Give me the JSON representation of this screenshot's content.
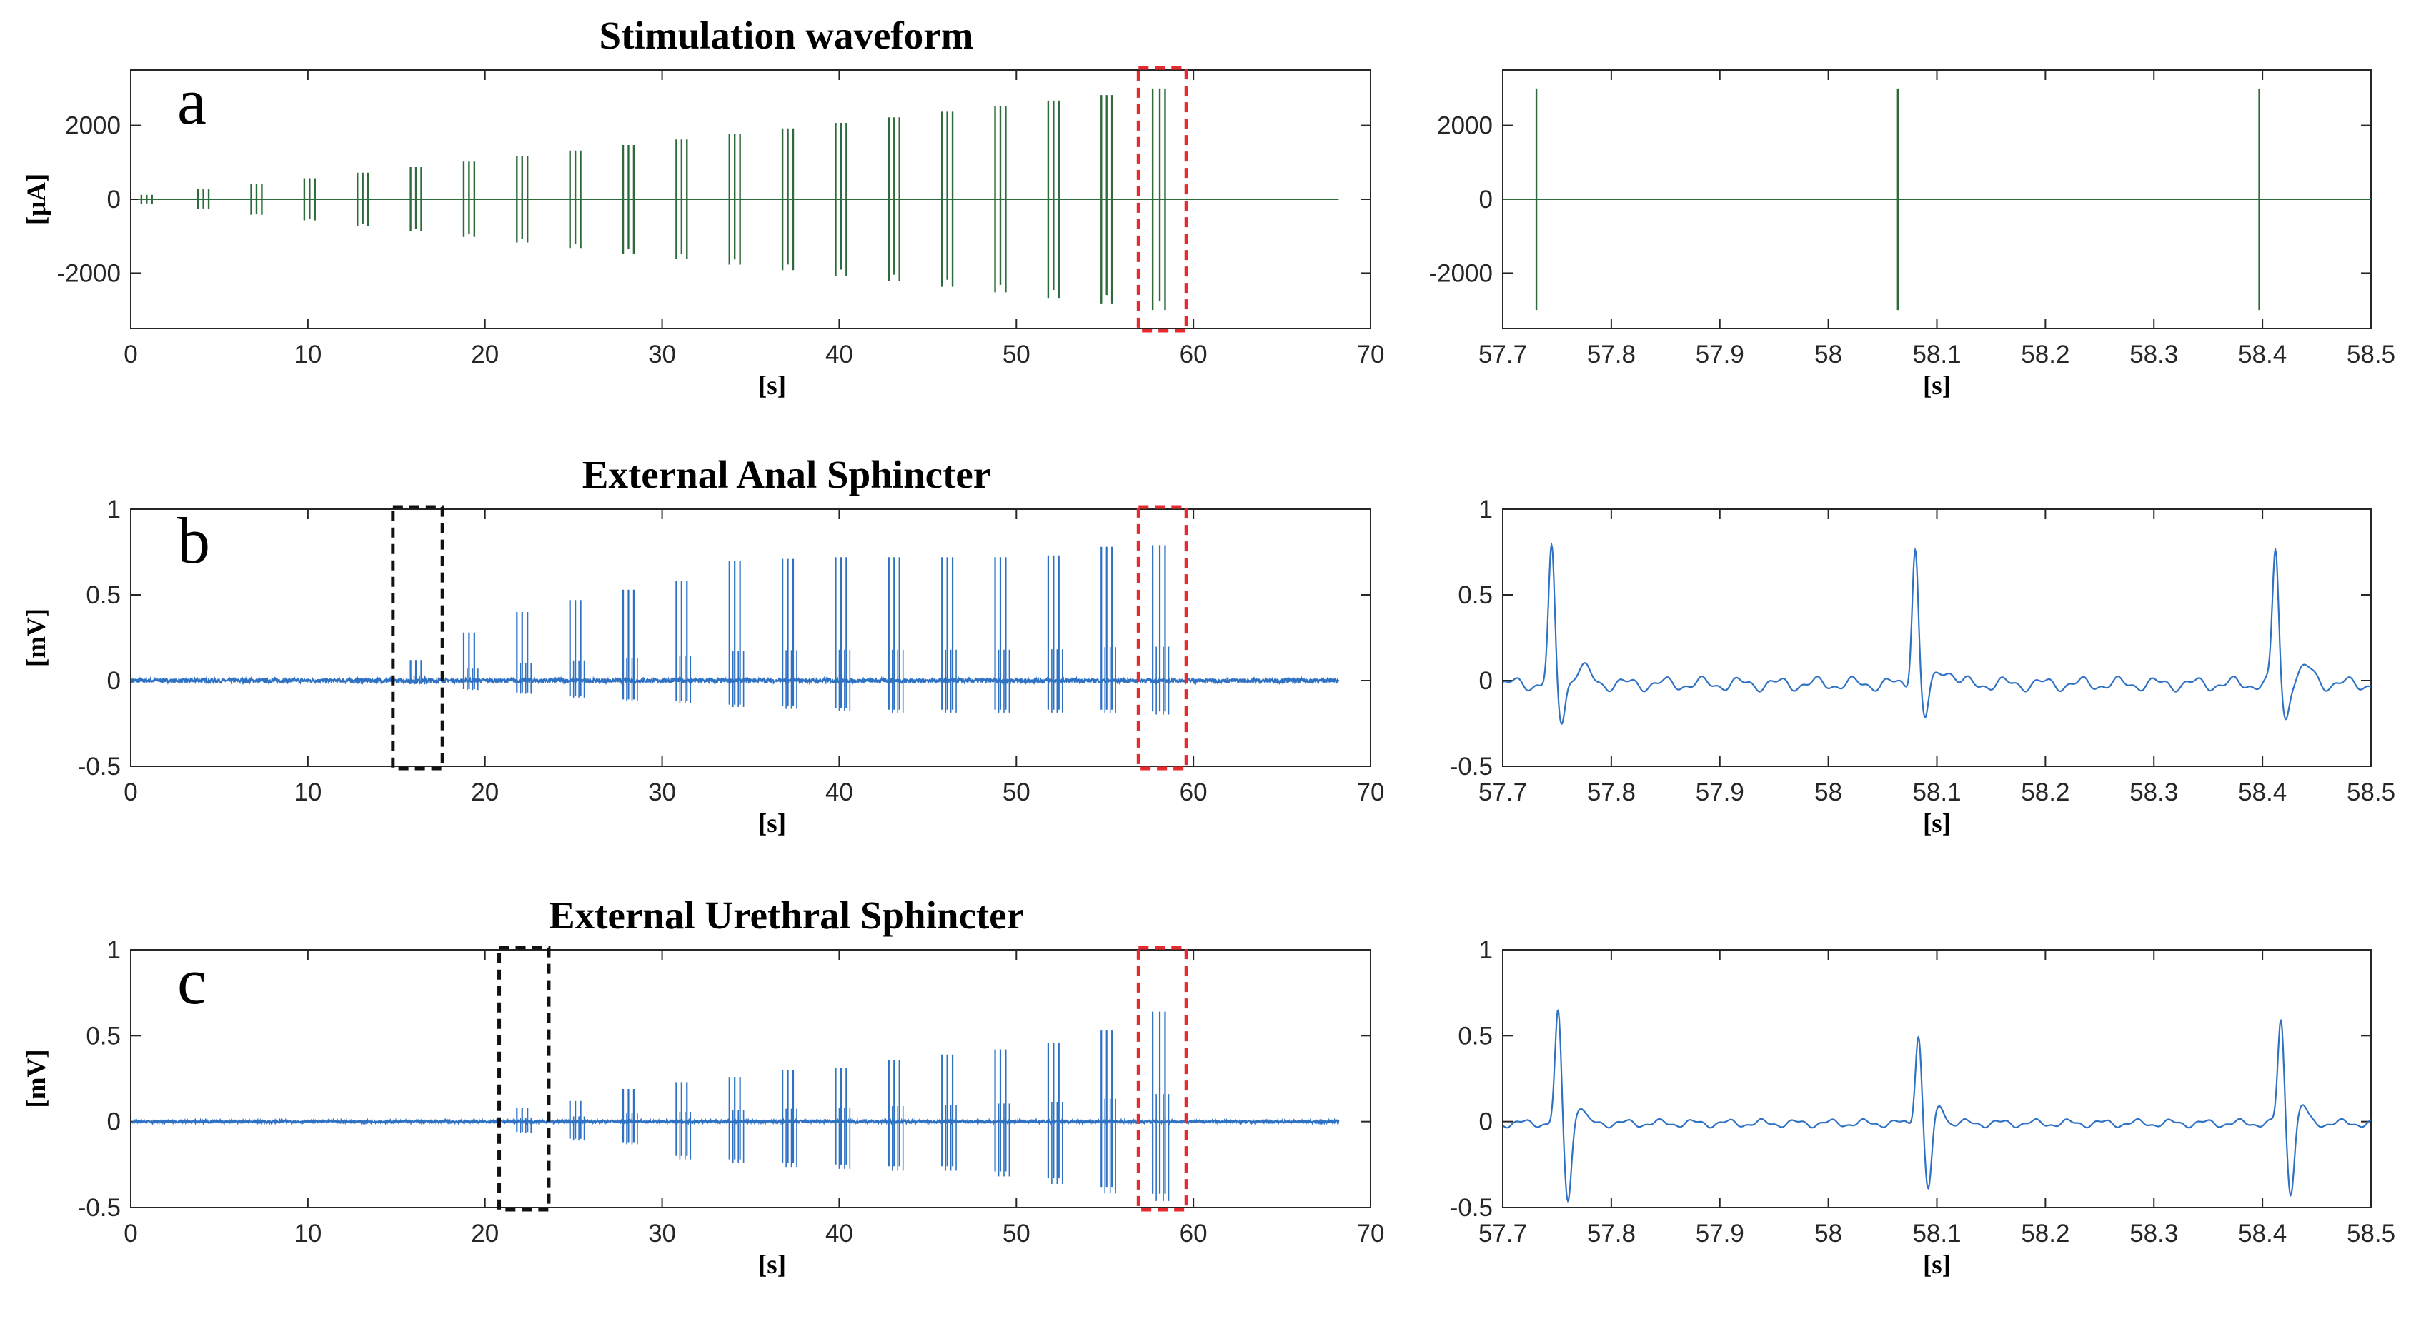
{
  "chart_data": [
    {
      "id": "a-full",
      "type": "line",
      "title": "Stimulation waveform",
      "panel_label": "a",
      "xlabel": "[s]",
      "ylabel": "[μA]",
      "xlim": [
        0,
        70
      ],
      "ylim": [
        -3500,
        3500
      ],
      "xticks": [
        "0",
        "10",
        "20",
        "30",
        "40",
        "50",
        "60",
        "70"
      ],
      "yticks": [
        "-2000",
        "0",
        "2000"
      ],
      "ytick_values": [
        -2000,
        0,
        2000
      ],
      "color": "#2e6b3a",
      "baseline": 0,
      "trains": [
        {
          "t": [
            0.6,
            0.9,
            1.2
          ],
          "amp": 120
        },
        {
          "t": [
            3.8,
            4.1,
            4.4
          ],
          "amp": 270
        },
        {
          "t": [
            6.8,
            7.1,
            7.4
          ],
          "amp": 420
        },
        {
          "t": [
            9.8,
            10.1,
            10.4
          ],
          "amp": 570
        },
        {
          "t": [
            12.8,
            13.1,
            13.4
          ],
          "amp": 720
        },
        {
          "t": [
            15.8,
            16.1,
            16.4
          ],
          "amp": 870
        },
        {
          "t": [
            18.8,
            19.1,
            19.4
          ],
          "amp": 1020
        },
        {
          "t": [
            21.8,
            22.1,
            22.4
          ],
          "amp": 1170
        },
        {
          "t": [
            24.8,
            25.1,
            25.4
          ],
          "amp": 1320
        },
        {
          "t": [
            27.8,
            28.1,
            28.4
          ],
          "amp": 1470
        },
        {
          "t": [
            30.8,
            31.1,
            31.4
          ],
          "amp": 1620
        },
        {
          "t": [
            33.8,
            34.1,
            34.4
          ],
          "amp": 1770
        },
        {
          "t": [
            36.8,
            37.1,
            37.4
          ],
          "amp": 1920
        },
        {
          "t": [
            39.8,
            40.1,
            40.4
          ],
          "amp": 2070
        },
        {
          "t": [
            42.8,
            43.1,
            43.4
          ],
          "amp": 2220
        },
        {
          "t": [
            45.8,
            46.1,
            46.4
          ],
          "amp": 2370
        },
        {
          "t": [
            48.8,
            49.1,
            49.4
          ],
          "amp": 2520
        },
        {
          "t": [
            51.8,
            52.1,
            52.4
          ],
          "amp": 2670
        },
        {
          "t": [
            54.8,
            55.1,
            55.4
          ],
          "amp": 2820
        },
        {
          "t": [
            57.7,
            58.1,
            58.4
          ],
          "amp": 3000
        }
      ],
      "highlight_boxes": [
        {
          "x": [
            56.9,
            59.6
          ],
          "color": "#e8292e"
        }
      ]
    },
    {
      "id": "a-zoom",
      "type": "line",
      "xlabel": "[s]",
      "ylabel": "",
      "xlim": [
        57.7,
        58.5
      ],
      "ylim": [
        -3500,
        3500
      ],
      "xticks": [
        "57.7",
        "57.8",
        "57.9",
        "58",
        "58.1",
        "58.2",
        "58.3",
        "58.4",
        "58.5"
      ],
      "yticks": [
        "-2000",
        "0",
        "2000"
      ],
      "ytick_values": [
        -2000,
        0,
        2000
      ],
      "color": "#2e6b3a",
      "pulses": [
        {
          "t": 57.731,
          "amp": 3000
        },
        {
          "t": 58.064,
          "amp": 3000
        },
        {
          "t": 58.397,
          "amp": 3000
        }
      ]
    },
    {
      "id": "b-full",
      "type": "line",
      "title": "External Anal Sphincter",
      "panel_label": "b",
      "xlabel": "[s]",
      "ylabel": "[mV]",
      "xlim": [
        0,
        70
      ],
      "ylim": [
        -0.5,
        1
      ],
      "xticks": [
        "0",
        "10",
        "20",
        "30",
        "40",
        "50",
        "60",
        "70"
      ],
      "yticks": [
        "-0.5",
        "0",
        "0.5",
        "1"
      ],
      "ytick_values": [
        -0.5,
        0,
        0.5,
        1
      ],
      "color": "#2f72c4",
      "signal_end": 68.2,
      "noise": 0.012,
      "trains": [
        {
          "t": [
            15.8,
            16.1,
            16.4
          ],
          "pos": 0.12,
          "neg": -0.02
        },
        {
          "t": [
            18.8,
            19.1,
            19.4
          ],
          "pos": 0.28,
          "neg": -0.05
        },
        {
          "t": [
            21.8,
            22.1,
            22.4
          ],
          "pos": 0.4,
          "neg": -0.07
        },
        {
          "t": [
            24.8,
            25.1,
            25.4
          ],
          "pos": 0.47,
          "neg": -0.09
        },
        {
          "t": [
            27.8,
            28.1,
            28.4
          ],
          "pos": 0.53,
          "neg": -0.11
        },
        {
          "t": [
            30.8,
            31.1,
            31.4
          ],
          "pos": 0.58,
          "neg": -0.12
        },
        {
          "t": [
            33.8,
            34.1,
            34.4
          ],
          "pos": 0.7,
          "neg": -0.14
        },
        {
          "t": [
            36.8,
            37.1,
            37.4
          ],
          "pos": 0.71,
          "neg": -0.15
        },
        {
          "t": [
            39.8,
            40.1,
            40.4
          ],
          "pos": 0.72,
          "neg": -0.16
        },
        {
          "t": [
            42.8,
            43.1,
            43.4
          ],
          "pos": 0.72,
          "neg": -0.17
        },
        {
          "t": [
            45.8,
            46.1,
            46.4
          ],
          "pos": 0.72,
          "neg": -0.17
        },
        {
          "t": [
            48.8,
            49.1,
            49.4
          ],
          "pos": 0.72,
          "neg": -0.17
        },
        {
          "t": [
            51.8,
            52.1,
            52.4
          ],
          "pos": 0.73,
          "neg": -0.17
        },
        {
          "t": [
            54.8,
            55.1,
            55.4
          ],
          "pos": 0.78,
          "neg": -0.17
        },
        {
          "t": [
            57.7,
            58.1,
            58.4
          ],
          "pos": 0.79,
          "neg": -0.18
        }
      ],
      "highlight_boxes": [
        {
          "x": [
            14.8,
            17.6
          ],
          "color": "#111111"
        },
        {
          "x": [
            56.9,
            59.6
          ],
          "color": "#e8292e"
        }
      ]
    },
    {
      "id": "b-zoom",
      "type": "line",
      "xlabel": "[s]",
      "ylabel": "",
      "xlim": [
        57.7,
        58.5
      ],
      "ylim": [
        -0.5,
        1
      ],
      "xticks": [
        "57.7",
        "57.8",
        "57.9",
        "58",
        "58.1",
        "58.2",
        "58.3",
        "58.4",
        "58.5"
      ],
      "yticks": [
        "-0.5",
        "0",
        "0.5",
        "1"
      ],
      "ytick_values": [
        -0.5,
        0,
        0.5,
        1
      ],
      "color": "#2f72c4",
      "spikes": [
        {
          "t": 57.745,
          "peak": 0.77,
          "trough": -0.22
        },
        {
          "t": 58.08,
          "peak": 0.8,
          "trough": -0.21
        },
        {
          "t": 58.412,
          "peak": 0.78,
          "trough": -0.2
        }
      ]
    },
    {
      "id": "c-full",
      "type": "line",
      "title": "External Urethral Sphincter",
      "panel_label": "c",
      "xlabel": "[s]",
      "ylabel": "[mV]",
      "xlim": [
        0,
        70
      ],
      "ylim": [
        -0.5,
        1
      ],
      "xticks": [
        "0",
        "10",
        "20",
        "30",
        "40",
        "50",
        "60",
        "70"
      ],
      "yticks": [
        "-0.5",
        "0",
        "0.5",
        "1"
      ],
      "ytick_values": [
        -0.5,
        0,
        0.5,
        1
      ],
      "color": "#2f72c4",
      "signal_end": 68.2,
      "noise": 0.008,
      "trains": [
        {
          "t": [
            21.8,
            22.1,
            22.4
          ],
          "pos": 0.08,
          "neg": -0.06
        },
        {
          "t": [
            24.8,
            25.1,
            25.4
          ],
          "pos": 0.12,
          "neg": -0.1
        },
        {
          "t": [
            27.8,
            28.1,
            28.4
          ],
          "pos": 0.19,
          "neg": -0.12
        },
        {
          "t": [
            30.8,
            31.1,
            31.4
          ],
          "pos": 0.23,
          "neg": -0.2
        },
        {
          "t": [
            33.8,
            34.1,
            34.4
          ],
          "pos": 0.26,
          "neg": -0.22
        },
        {
          "t": [
            36.8,
            37.1,
            37.4
          ],
          "pos": 0.3,
          "neg": -0.24
        },
        {
          "t": [
            39.8,
            40.1,
            40.4
          ],
          "pos": 0.31,
          "neg": -0.25
        },
        {
          "t": [
            42.8,
            43.1,
            43.4
          ],
          "pos": 0.36,
          "neg": -0.26
        },
        {
          "t": [
            45.8,
            46.1,
            46.4
          ],
          "pos": 0.39,
          "neg": -0.26
        },
        {
          "t": [
            48.8,
            49.1,
            49.4
          ],
          "pos": 0.42,
          "neg": -0.29
        },
        {
          "t": [
            51.8,
            52.1,
            52.4
          ],
          "pos": 0.46,
          "neg": -0.33
        },
        {
          "t": [
            54.8,
            55.1,
            55.4
          ],
          "pos": 0.53,
          "neg": -0.38
        },
        {
          "t": [
            57.7,
            58.1,
            58.4
          ],
          "pos": 0.64,
          "neg": -0.42
        }
      ],
      "highlight_boxes": [
        {
          "x": [
            20.8,
            23.6
          ],
          "color": "#111111"
        },
        {
          "x": [
            56.9,
            59.6
          ],
          "color": "#e8292e"
        }
      ]
    },
    {
      "id": "c-zoom",
      "type": "line",
      "xlabel": "[s]",
      "ylabel": "",
      "xlim": [
        57.7,
        58.5
      ],
      "ylim": [
        -0.5,
        1
      ],
      "xticks": [
        "57.7",
        "57.8",
        "57.9",
        "58",
        "58.1",
        "58.2",
        "58.3",
        "58.4",
        "58.5"
      ],
      "yticks": [
        "-0.5",
        "0",
        "0.5",
        "1"
      ],
      "ytick_values": [
        -0.5,
        0,
        0.5,
        1
      ],
      "color": "#2f72c4",
      "spikes": [
        {
          "t": 57.751,
          "peak": 0.64,
          "trough": -0.45
        },
        {
          "t": 58.083,
          "peak": 0.52,
          "trough": -0.39
        },
        {
          "t": 58.417,
          "peak": 0.6,
          "trough": -0.4
        }
      ]
    }
  ]
}
